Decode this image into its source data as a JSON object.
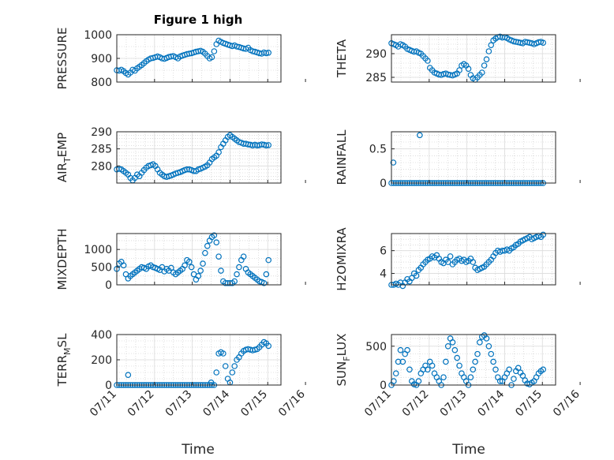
{
  "figure": {
    "title": "Figure 1 high",
    "xlabel": "Time"
  },
  "chart_data": [
    {
      "type": "scatter",
      "title": "Figure 1 high",
      "ylabel": {
        "main": "PRESSURE",
        "sub": ""
      },
      "xlim": [
        "07/11",
        "07/15"
      ],
      "ylim": [
        800,
        1000
      ],
      "yticks": [
        800,
        900,
        1000
      ],
      "xticks": [
        "07/11",
        "07/12",
        "07/13",
        "07/14",
        "07/15",
        "07/16"
      ],
      "grid": true,
      "marker": "circle",
      "color": "#0072bd",
      "x": [
        0.0,
        0.06,
        0.12,
        0.18,
        0.24,
        0.3,
        0.36,
        0.42,
        0.48,
        0.54,
        0.6,
        0.66,
        0.72,
        0.78,
        0.84,
        0.9,
        0.96,
        1.02,
        1.08,
        1.14,
        1.2,
        1.26,
        1.32,
        1.38,
        1.44,
        1.5,
        1.56,
        1.62,
        1.68,
        1.74,
        1.8,
        1.86,
        1.92,
        1.98,
        2.04,
        2.1,
        2.16,
        2.22,
        2.28,
        2.34,
        2.4,
        2.46,
        2.52,
        2.58,
        2.64,
        2.7,
        2.76,
        2.82,
        2.88,
        2.94,
        3.0,
        3.06,
        3.12,
        3.18,
        3.24,
        3.3,
        3.36,
        3.42,
        3.48,
        3.54,
        3.6,
        3.66,
        3.72,
        3.78,
        3.84,
        3.9,
        3.96,
        4.02
      ],
      "y": [
        850,
        848,
        852,
        846,
        838,
        832,
        840,
        852,
        848,
        858,
        865,
        872,
        880,
        888,
        895,
        900,
        902,
        905,
        908,
        905,
        900,
        898,
        902,
        906,
        908,
        910,
        905,
        900,
        908,
        912,
        915,
        918,
        920,
        922,
        925,
        928,
        930,
        932,
        928,
        920,
        910,
        900,
        905,
        930,
        960,
        975,
        970,
        965,
        962,
        958,
        955,
        952,
        955,
        950,
        948,
        945,
        942,
        940,
        945,
        935,
        930,
        928,
        925,
        922,
        920,
        925,
        922,
        924
      ]
    },
    {
      "type": "scatter",
      "ylabel": {
        "main": "THETA",
        "sub": ""
      },
      "xlim": [
        "07/11",
        "07/15"
      ],
      "ylim": [
        284,
        294
      ],
      "yticks": [
        285,
        290
      ],
      "xticks": [
        "07/11",
        "07/12",
        "07/13",
        "07/14",
        "07/15",
        "07/16"
      ],
      "grid": true,
      "marker": "circle",
      "color": "#0072bd",
      "x": [
        0.0,
        0.06,
        0.12,
        0.18,
        0.24,
        0.3,
        0.36,
        0.42,
        0.48,
        0.54,
        0.6,
        0.66,
        0.72,
        0.78,
        0.84,
        0.9,
        0.96,
        1.02,
        1.08,
        1.14,
        1.2,
        1.26,
        1.32,
        1.38,
        1.44,
        1.5,
        1.56,
        1.62,
        1.68,
        1.74,
        1.8,
        1.86,
        1.92,
        1.98,
        2.04,
        2.1,
        2.16,
        2.22,
        2.28,
        2.34,
        2.4,
        2.46,
        2.52,
        2.58,
        2.64,
        2.7,
        2.76,
        2.82,
        2.88,
        2.94,
        3.0,
        3.06,
        3.12,
        3.18,
        3.24,
        3.3,
        3.36,
        3.42,
        3.48,
        3.54,
        3.6,
        3.66,
        3.72,
        3.78,
        3.84,
        3.9,
        3.96,
        4.02
      ],
      "y": [
        292.2,
        292.0,
        291.8,
        291.5,
        292.0,
        291.8,
        291.5,
        291.0,
        290.8,
        290.6,
        290.4,
        290.5,
        290.2,
        290.0,
        289.5,
        289.0,
        288.5,
        287.0,
        286.5,
        286.0,
        285.8,
        285.6,
        285.5,
        285.7,
        285.8,
        285.6,
        285.5,
        285.4,
        285.6,
        285.8,
        286.5,
        287.5,
        287.8,
        287.5,
        286.8,
        285.5,
        284.8,
        284.5,
        285.0,
        285.5,
        286.0,
        287.5,
        288.8,
        290.5,
        291.8,
        292.8,
        293.2,
        293.5,
        293.6,
        293.4,
        293.5,
        293.3,
        293.0,
        292.8,
        292.6,
        292.5,
        292.4,
        292.3,
        292.2,
        292.5,
        292.4,
        292.3,
        292.2,
        292.0,
        292.2,
        292.4,
        292.5,
        292.3
      ]
    },
    {
      "type": "scatter",
      "ylabel": {
        "main": "AIR",
        "sub": "T",
        "rest": "EMP"
      },
      "xlim": [
        "07/11",
        "07/15"
      ],
      "ylim": [
        275,
        290
      ],
      "yticks": [
        280,
        285,
        290
      ],
      "xticks": [
        "07/11",
        "07/12",
        "07/13",
        "07/14",
        "07/15",
        "07/16"
      ],
      "grid": true,
      "marker": "circle",
      "color": "#0072bd",
      "x": [
        0.0,
        0.06,
        0.12,
        0.18,
        0.24,
        0.3,
        0.36,
        0.42,
        0.48,
        0.54,
        0.6,
        0.66,
        0.72,
        0.78,
        0.84,
        0.9,
        0.96,
        1.02,
        1.08,
        1.14,
        1.2,
        1.26,
        1.32,
        1.38,
        1.44,
        1.5,
        1.56,
        1.62,
        1.68,
        1.74,
        1.8,
        1.86,
        1.92,
        1.98,
        2.04,
        2.1,
        2.16,
        2.22,
        2.28,
        2.34,
        2.4,
        2.46,
        2.52,
        2.58,
        2.64,
        2.7,
        2.76,
        2.82,
        2.88,
        2.94,
        3.0,
        3.06,
        3.12,
        3.18,
        3.24,
        3.3,
        3.36,
        3.42,
        3.48,
        3.54,
        3.6,
        3.66,
        3.72,
        3.78,
        3.84,
        3.9,
        3.96,
        4.02
      ],
      "y": [
        279.0,
        279.2,
        279.0,
        278.5,
        278.0,
        277.5,
        276.5,
        275.8,
        276.5,
        277.5,
        277.0,
        278.0,
        278.8,
        279.5,
        280.0,
        280.2,
        280.5,
        280.0,
        279.0,
        278.0,
        277.5,
        277.0,
        276.8,
        277.0,
        277.2,
        277.5,
        277.8,
        278.0,
        278.2,
        278.5,
        278.8,
        279.0,
        279.0,
        278.8,
        278.5,
        278.5,
        279.0,
        279.2,
        279.5,
        279.8,
        280.2,
        281.0,
        282.0,
        282.5,
        283.0,
        284.0,
        285.5,
        286.5,
        287.5,
        288.5,
        289.0,
        288.5,
        288.0,
        287.5,
        287.0,
        286.8,
        286.5,
        286.5,
        286.3,
        286.2,
        286.0,
        286.2,
        286.0,
        286.1,
        286.3,
        286.2,
        286.0,
        286.1
      ]
    },
    {
      "type": "scatter",
      "ylabel": {
        "main": "RAINFALL",
        "sub": ""
      },
      "xlim": [
        "07/11",
        "07/15"
      ],
      "ylim": [
        0,
        0.75
      ],
      "yticks": [
        0,
        0.5
      ],
      "xticks": [
        "07/11",
        "07/12",
        "07/13",
        "07/14",
        "07/15",
        "07/16"
      ],
      "grid": true,
      "marker": "circle",
      "color": "#0072bd",
      "x": [
        0.0,
        0.06,
        0.12,
        0.18,
        0.24,
        0.3,
        0.36,
        0.42,
        0.48,
        0.54,
        0.6,
        0.66,
        0.72,
        0.78,
        0.84,
        0.9,
        0.96,
        1.02,
        1.08,
        1.14,
        1.2,
        1.26,
        1.32,
        1.38,
        1.44,
        1.5,
        1.56,
        1.62,
        1.68,
        1.74,
        1.8,
        1.86,
        1.92,
        1.98,
        2.04,
        2.1,
        2.16,
        2.22,
        2.28,
        2.34,
        2.4,
        2.46,
        2.52,
        2.58,
        2.64,
        2.7,
        2.76,
        2.82,
        2.88,
        2.94,
        3.0,
        3.06,
        3.12,
        3.18,
        3.24,
        3.3,
        3.36,
        3.42,
        3.48,
        3.54,
        3.6,
        3.66,
        3.72,
        3.78,
        3.84,
        3.9,
        3.96,
        4.02,
        0.05,
        0.75
      ],
      "y": [
        0,
        0,
        0,
        0,
        0,
        0,
        0,
        0,
        0,
        0,
        0,
        0,
        0,
        0,
        0,
        0,
        0,
        0,
        0,
        0,
        0,
        0,
        0,
        0,
        0,
        0,
        0,
        0,
        0,
        0,
        0,
        0,
        0,
        0,
        0,
        0,
        0,
        0,
        0,
        0,
        0,
        0,
        0,
        0,
        0,
        0,
        0,
        0,
        0,
        0,
        0,
        0,
        0,
        0,
        0,
        0,
        0,
        0,
        0,
        0,
        0,
        0,
        0,
        0,
        0,
        0,
        0,
        0,
        0.3,
        0.7
      ]
    },
    {
      "type": "scatter",
      "ylabel": {
        "main": "MIXDEPTH",
        "sub": ""
      },
      "xlim": [
        "07/11",
        "07/15"
      ],
      "ylim": [
        0,
        1450
      ],
      "yticks": [
        0,
        500,
        1000
      ],
      "xticks": [
        "07/11",
        "07/12",
        "07/13",
        "07/14",
        "07/15",
        "07/16"
      ],
      "grid": true,
      "marker": "circle",
      "color": "#0072bd",
      "x": [
        0.0,
        0.06,
        0.12,
        0.18,
        0.24,
        0.3,
        0.36,
        0.42,
        0.48,
        0.54,
        0.6,
        0.66,
        0.72,
        0.78,
        0.84,
        0.9,
        0.96,
        1.02,
        1.08,
        1.14,
        1.2,
        1.26,
        1.32,
        1.38,
        1.44,
        1.5,
        1.56,
        1.62,
        1.68,
        1.74,
        1.8,
        1.86,
        1.92,
        1.98,
        2.04,
        2.1,
        2.16,
        2.22,
        2.28,
        2.34,
        2.4,
        2.46,
        2.52,
        2.58,
        2.64,
        2.7,
        2.76,
        2.82,
        2.88,
        2.94,
        3.0,
        3.06,
        3.12,
        3.18,
        3.24,
        3.3,
        3.36,
        3.42,
        3.48,
        3.54,
        3.6,
        3.66,
        3.72,
        3.78,
        3.84,
        3.9,
        3.96,
        4.02
      ],
      "y": [
        450,
        600,
        650,
        550,
        300,
        180,
        250,
        300,
        350,
        400,
        450,
        500,
        480,
        450,
        520,
        550,
        500,
        480,
        450,
        420,
        500,
        380,
        450,
        400,
        480,
        350,
        300,
        350,
        400,
        450,
        550,
        700,
        650,
        500,
        300,
        150,
        250,
        400,
        600,
        900,
        1100,
        1250,
        1350,
        1400,
        1200,
        800,
        400,
        100,
        50,
        50,
        50,
        50,
        100,
        300,
        500,
        700,
        800,
        450,
        350,
        300,
        250,
        200,
        150,
        100,
        80,
        50,
        300,
        700
      ]
    },
    {
      "type": "scatter",
      "ylabel": {
        "main": "H2OMIXRA",
        "sub": ""
      },
      "xlim": [
        "07/11",
        "07/15"
      ],
      "ylim": [
        3,
        7.5
      ],
      "yticks": [
        4,
        6
      ],
      "xticks": [
        "07/11",
        "07/12",
        "07/13",
        "07/14",
        "07/15",
        "07/16"
      ],
      "grid": true,
      "marker": "circle",
      "color": "#0072bd",
      "x": [
        0.0,
        0.06,
        0.12,
        0.18,
        0.24,
        0.3,
        0.36,
        0.42,
        0.48,
        0.54,
        0.6,
        0.66,
        0.72,
        0.78,
        0.84,
        0.9,
        0.96,
        1.02,
        1.08,
        1.14,
        1.2,
        1.26,
        1.32,
        1.38,
        1.44,
        1.5,
        1.56,
        1.62,
        1.68,
        1.74,
        1.8,
        1.86,
        1.92,
        1.98,
        2.04,
        2.1,
        2.16,
        2.22,
        2.28,
        2.34,
        2.4,
        2.46,
        2.52,
        2.58,
        2.64,
        2.7,
        2.76,
        2.82,
        2.88,
        2.94,
        3.0,
        3.06,
        3.12,
        3.18,
        3.24,
        3.3,
        3.36,
        3.42,
        3.48,
        3.54,
        3.6,
        3.66,
        3.72,
        3.78,
        3.84,
        3.9,
        3.96,
        4.02
      ],
      "y": [
        3.0,
        3.0,
        3.1,
        3.0,
        3.2,
        2.9,
        3.2,
        3.5,
        3.3,
        3.6,
        4.0,
        3.8,
        4.3,
        4.5,
        4.8,
        5.0,
        5.2,
        5.3,
        5.5,
        5.4,
        5.6,
        5.3,
        5.0,
        4.9,
        5.2,
        5.0,
        5.5,
        4.8,
        5.0,
        5.2,
        5.3,
        5.1,
        5.2,
        5.0,
        5.1,
        5.3,
        5.0,
        4.5,
        4.3,
        4.4,
        4.5,
        4.6,
        4.8,
        5.0,
        5.2,
        5.5,
        5.8,
        6.0,
        5.9,
        6.0,
        6.0,
        6.1,
        6.0,
        6.2,
        6.3,
        6.5,
        6.6,
        6.8,
        6.9,
        7.0,
        7.1,
        7.2,
        7.0,
        7.1,
        7.2,
        7.3,
        7.2,
        7.4
      ]
    },
    {
      "type": "scatter",
      "ylabel": {
        "main": "TERR",
        "sub": "M",
        "rest": "SL"
      },
      "xlim": [
        "07/11",
        "07/15"
      ],
      "ylim": [
        0,
        400
      ],
      "yticks": [
        0,
        200,
        400
      ],
      "xticks": [
        "07/11",
        "07/12",
        "07/13",
        "07/14",
        "07/15",
        "07/16"
      ],
      "xticklabels": [
        "07/11",
        "07/12",
        "07/13",
        "07/14",
        "07/15",
        "07/16"
      ],
      "grid": true,
      "marker": "circle",
      "color": "#0072bd",
      "x": [
        0.0,
        0.06,
        0.12,
        0.18,
        0.24,
        0.3,
        0.36,
        0.42,
        0.48,
        0.54,
        0.6,
        0.66,
        0.72,
        0.78,
        0.84,
        0.9,
        0.96,
        1.02,
        1.08,
        1.14,
        1.2,
        1.26,
        1.32,
        1.38,
        1.44,
        1.5,
        1.56,
        1.62,
        1.68,
        1.74,
        1.8,
        1.86,
        1.92,
        1.98,
        2.04,
        2.1,
        2.16,
        2.22,
        2.28,
        2.34,
        2.4,
        2.46,
        2.52,
        2.58,
        2.64,
        2.7,
        2.76,
        2.82,
        2.88,
        2.94,
        3.0,
        3.06,
        3.12,
        3.18,
        3.24,
        3.3,
        3.36,
        3.42,
        3.48,
        3.54,
        3.6,
        3.66,
        3.72,
        3.78,
        3.84,
        3.9,
        3.96,
        4.02,
        0.3,
        2.5
      ],
      "y": [
        0,
        0,
        0,
        0,
        0,
        0,
        0,
        0,
        0,
        0,
        0,
        0,
        0,
        0,
        0,
        0,
        0,
        0,
        0,
        0,
        0,
        0,
        0,
        0,
        0,
        0,
        0,
        0,
        0,
        0,
        0,
        0,
        0,
        0,
        0,
        0,
        0,
        0,
        0,
        0,
        0,
        0,
        0,
        0,
        100,
        250,
        260,
        250,
        150,
        50,
        20,
        100,
        150,
        200,
        220,
        250,
        270,
        280,
        285,
        280,
        275,
        280,
        285,
        300,
        320,
        340,
        330,
        310,
        80,
        20
      ]
    },
    {
      "type": "scatter",
      "ylabel": {
        "main": "SUN",
        "sub": "F",
        "rest": "LUX"
      },
      "xlim": [
        "07/11",
        "07/15"
      ],
      "ylim": [
        0,
        650
      ],
      "yticks": [
        0,
        500
      ],
      "xticks": [
        "07/11",
        "07/12",
        "07/13",
        "07/14",
        "07/15",
        "07/16"
      ],
      "xticklabels": [
        "07/11",
        "07/12",
        "07/13",
        "07/14",
        "07/15",
        "07/16"
      ],
      "grid": true,
      "marker": "circle",
      "color": "#0072bd",
      "x": [
        0.0,
        0.06,
        0.12,
        0.18,
        0.24,
        0.3,
        0.36,
        0.42,
        0.48,
        0.54,
        0.6,
        0.66,
        0.72,
        0.78,
        0.84,
        0.9,
        0.96,
        1.02,
        1.08,
        1.14,
        1.2,
        1.26,
        1.32,
        1.38,
        1.44,
        1.5,
        1.56,
        1.62,
        1.68,
        1.74,
        1.8,
        1.86,
        1.92,
        1.98,
        2.04,
        2.1,
        2.16,
        2.22,
        2.28,
        2.34,
        2.4,
        2.46,
        2.52,
        2.58,
        2.64,
        2.7,
        2.76,
        2.82,
        2.88,
        2.94,
        3.0,
        3.06,
        3.12,
        3.18,
        3.24,
        3.3,
        3.36,
        3.42,
        3.48,
        3.54,
        3.6,
        3.66,
        3.72,
        3.78,
        3.84,
        3.9,
        3.96,
        4.02
      ],
      "y": [
        0,
        50,
        150,
        300,
        450,
        300,
        400,
        450,
        200,
        50,
        10,
        0,
        50,
        150,
        200,
        250,
        200,
        300,
        250,
        150,
        100,
        50,
        0,
        100,
        300,
        500,
        600,
        550,
        450,
        350,
        250,
        150,
        100,
        50,
        0,
        100,
        200,
        300,
        400,
        550,
        620,
        640,
        600,
        500,
        400,
        300,
        200,
        100,
        50,
        50,
        100,
        150,
        200,
        0,
        80,
        180,
        220,
        160,
        120,
        60,
        20,
        10,
        30,
        50,
        100,
        150,
        180,
        200
      ]
    }
  ]
}
